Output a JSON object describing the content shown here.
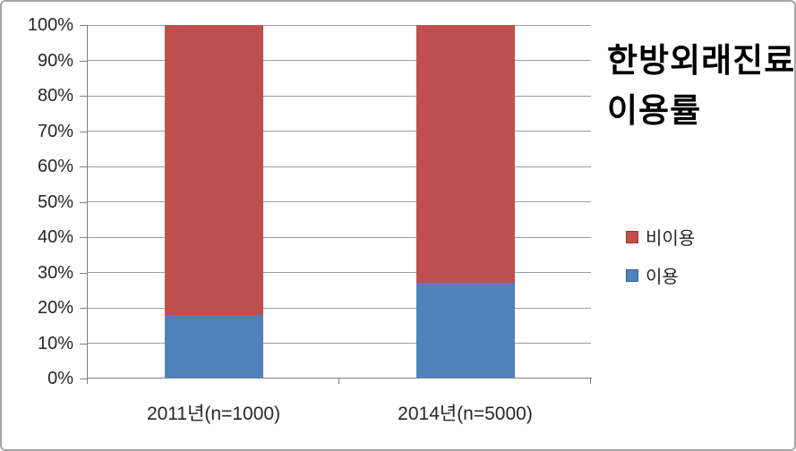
{
  "chart_data": {
    "type": "bar",
    "stacked": true,
    "title": "한방외래진료 이용률",
    "title_lines": [
      "한방외래진료",
      "이용률"
    ],
    "categories": [
      "2011년(n=1000)",
      "2014년(n=5000)"
    ],
    "series": [
      {
        "name": "이용",
        "values": [
          18,
          27
        ],
        "color": "#4F81BD",
        "border_color": "#376092"
      },
      {
        "name": "비이용",
        "values": [
          82,
          73
        ],
        "color": "#C0504D",
        "border_color": "#953735"
      }
    ],
    "y_axis": {
      "min": 0,
      "max": 100,
      "step": 10,
      "unit": "%",
      "tick_labels": [
        "0%",
        "10%",
        "20%",
        "30%",
        "40%",
        "50%",
        "60%",
        "70%",
        "80%",
        "90%",
        "100%"
      ]
    },
    "xlabel": "",
    "ylabel": "",
    "grid": true,
    "legend": {
      "position": "right",
      "entries": [
        {
          "label": "비이용",
          "color": "#C0504D",
          "border_color": "#953735"
        },
        {
          "label": "이용",
          "color": "#4F81BD",
          "border_color": "#376092"
        }
      ]
    }
  },
  "colors": {
    "background": "#FFFFFF",
    "frame_border": "#A6A6A6",
    "gridline": "#9C9C9C",
    "axis": "#808080",
    "label_text": "#262626",
    "title_text": "#000000"
  }
}
